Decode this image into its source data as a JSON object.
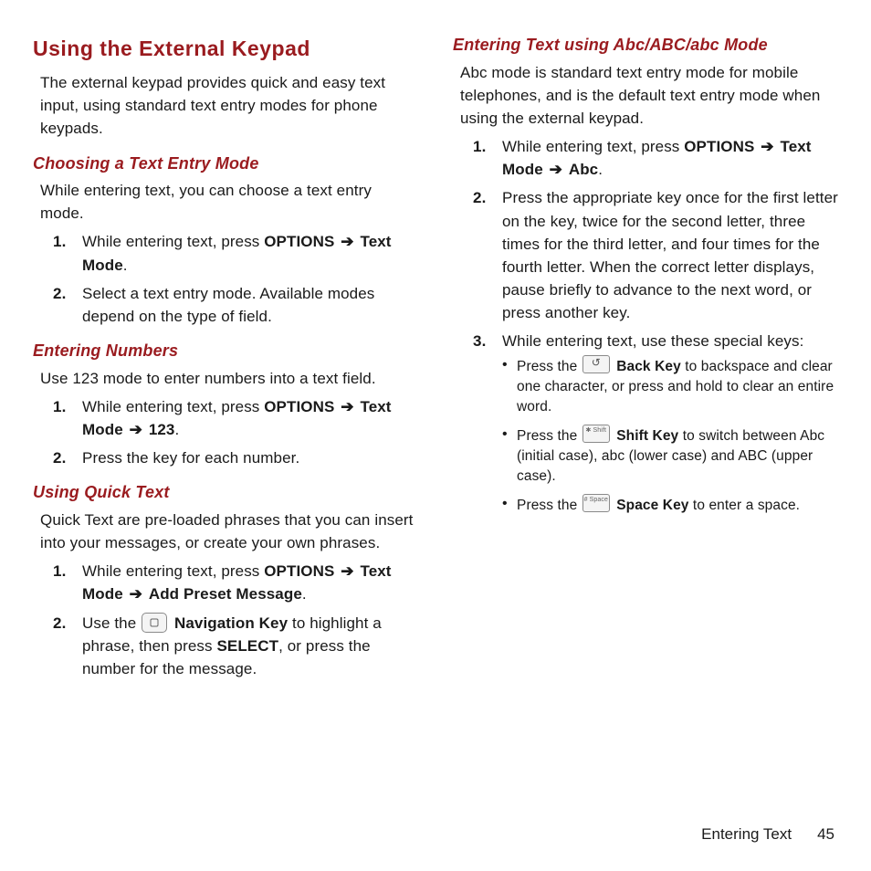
{
  "colors": {
    "heading": "#9a1b1f",
    "body": "#1a1a1a",
    "bg": "#ffffff",
    "keyBorder": "#8a8a8a",
    "keyFill": "#f4f4f4"
  },
  "arrowGlyph": "➔",
  "left": {
    "sectionTitle": "Using the External Keypad",
    "intro": "The external keypad provides quick and easy text input, using standard text entry modes for phone keypads.",
    "choosing": {
      "title": "Choosing a Text Entry Mode",
      "intro": "While entering text, you can choose a text entry mode.",
      "step1_pre": "While entering text, press ",
      "step1_options": "OPTIONS",
      "step1_textmode": "Text Mode",
      "step1_post": ".",
      "step2": "Select a text entry mode. Available modes depend on the type of field."
    },
    "numbers": {
      "title": "Entering Numbers",
      "intro": "Use 123 mode to enter numbers into a text field.",
      "step1_pre": "While entering text, press ",
      "step1_options": "OPTIONS",
      "step1_textmode": "Text Mode",
      "step1_123": "123",
      "step1_post": ".",
      "step2": "Press the key for each number."
    },
    "quick": {
      "title": "Using Quick Text",
      "intro": "Quick Text are pre-loaded phrases that you can insert into your messages, or create your own phrases.",
      "step1_pre": "While entering text, press ",
      "step1_options": "OPTIONS",
      "step1_textmode": "Text Mode",
      "step1_preset": "Add Preset Message",
      "step1_post": ".",
      "step2_pre": "Use the ",
      "step2_nav": "Navigation Key",
      "step2_mid": " to highlight a phrase, then press ",
      "step2_select": "SELECT",
      "step2_post": ", or press the number for the message."
    }
  },
  "right": {
    "abc": {
      "title": "Entering Text using Abc/ABC/abc Mode",
      "intro": "Abc mode is standard text entry mode for mobile telephones, and is the default text entry mode when using the external keypad.",
      "step1_pre": "While entering text, press ",
      "step1_options": "OPTIONS",
      "step1_textmode": "Text Mode",
      "step1_abc": "Abc",
      "step1_post": ".",
      "step2": "Press the appropriate key once for the first letter on the key, twice for the second letter, three times for the third letter, and four times for the fourth letter. When the correct letter displays, pause briefly to advance to the next word, or press another key.",
      "step3": "While entering text, use these special keys:",
      "b1_pre": "Press the ",
      "b1_key": "Back Key",
      "b1_post": " to backspace and clear one character, or press and hold to clear an entire word.",
      "b2_pre": "Press the ",
      "b2_key": "Shift Key",
      "b2_post": " to switch between Abc (initial case), abc (lower case) and ABC (upper case).",
      "b3_pre": "Press the ",
      "b3_key": "Space Key",
      "b3_post": " to enter a space."
    }
  },
  "footer": {
    "section": "Entering Text",
    "page": "45"
  }
}
